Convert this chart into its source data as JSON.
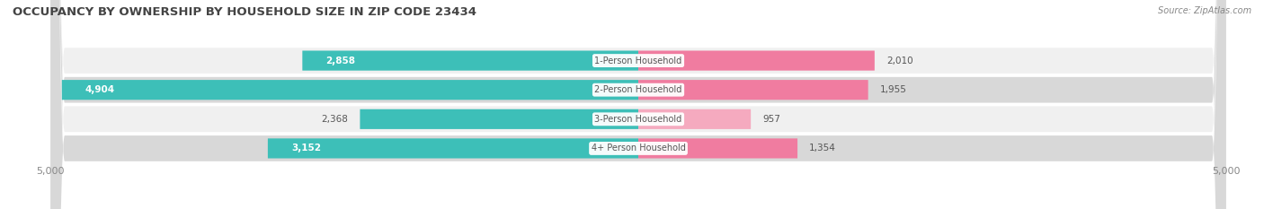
{
  "title": "OCCUPANCY BY OWNERSHIP BY HOUSEHOLD SIZE IN ZIP CODE 23434",
  "source": "Source: ZipAtlas.com",
  "categories": [
    "1-Person Household",
    "2-Person Household",
    "3-Person Household",
    "4+ Person Household"
  ],
  "owner_values": [
    2858,
    4904,
    2368,
    3152
  ],
  "renter_values": [
    2010,
    1955,
    957,
    1354
  ],
  "max_scale": 5000,
  "owner_color": "#3DBFB8",
  "renter_color_strong": "#F07CA0",
  "renter_color_light": "#F5AABF",
  "renter_colors": [
    "#F07CA0",
    "#F07CA0",
    "#F5AABF",
    "#F07CA0"
  ],
  "bg_color": "#ffffff",
  "row_bg_color": "#e8e8e8",
  "row_colors": [
    "#f0f0f0",
    "#d8d8d8",
    "#f0f0f0",
    "#d8d8d8"
  ],
  "title_fontsize": 9.5,
  "label_fontsize": 7.5,
  "tick_fontsize": 8,
  "source_fontsize": 7
}
